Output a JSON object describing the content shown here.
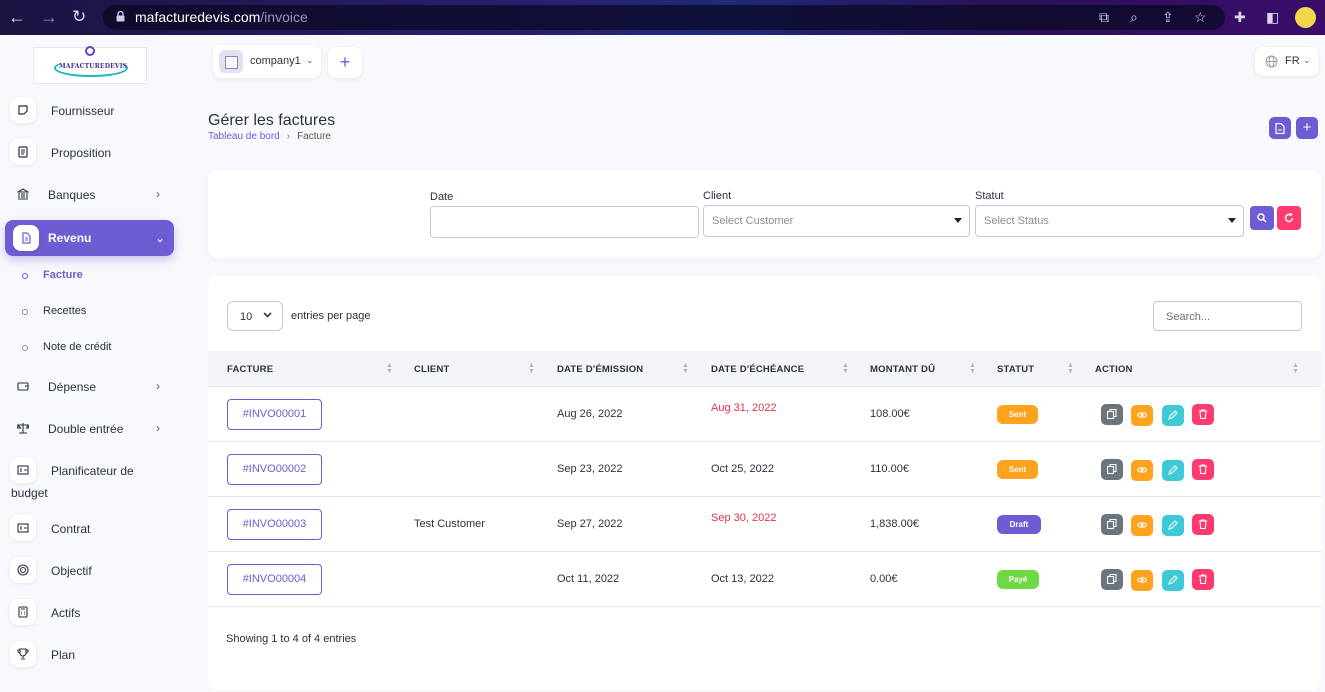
{
  "browser": {
    "url_host": "mafacturedevis.com",
    "url_path": "/invoice"
  },
  "logo": {
    "text": "MAFACTUREDEVIS"
  },
  "sidebar": {
    "items": [
      {
        "label": "Fournisseur",
        "icon": "note-icon"
      },
      {
        "label": "Proposition",
        "icon": "document-icon"
      },
      {
        "label": "Banques",
        "icon": "bank-icon",
        "chevron": "›"
      },
      {
        "label": "Revenu",
        "icon": "file-icon",
        "chevron": "⌄",
        "active": true
      },
      {
        "label": "Dépense",
        "icon": "wallet-icon",
        "chevron": "›"
      },
      {
        "label": "Double entrée",
        "icon": "scale-icon",
        "chevron": "›"
      },
      {
        "label": "Planificateur de",
        "label2": "budget",
        "icon": "budget-icon"
      },
      {
        "label": "Contrat",
        "icon": "contract-icon"
      },
      {
        "label": "Objectif",
        "icon": "target-icon"
      },
      {
        "label": "Actifs",
        "icon": "calculator-icon"
      },
      {
        "label": "Plan",
        "icon": "trophy-icon"
      }
    ],
    "sub_items": [
      {
        "label": "Facture",
        "active": true
      },
      {
        "label": "Recettes"
      },
      {
        "label": "Note de crédit"
      }
    ]
  },
  "topbar": {
    "company": "company1",
    "add_symbol": "+",
    "language": "FR"
  },
  "page": {
    "title": "Gérer les factures",
    "breadcrumb": {
      "home": "Tableau de bord",
      "separator": "›",
      "current": "Facture"
    },
    "add_symbol": "+"
  },
  "filters": {
    "date_label": "Date",
    "client_label": "Client",
    "client_placeholder": "Select Customer",
    "status_label": "Statut",
    "status_placeholder": "Select Status"
  },
  "table": {
    "entries_value": "10",
    "entries_label": "entries per page",
    "search_placeholder": "Search...",
    "columns": [
      "FACTURE",
      "CLIENT",
      "DATE D'ÉMISSION",
      "DATE D'ÉCHÉANCE",
      "MONTANT DÛ",
      "STATUT",
      "ACTION"
    ],
    "rows": [
      {
        "invoice": "#INVO00001",
        "client": "",
        "issue_date": "Aug 26, 2022",
        "due_date": "Aug 31, 2022",
        "overdue": true,
        "amount": "108.00€",
        "status": "Sent",
        "status_color": "#ffa21d"
      },
      {
        "invoice": "#INVO00002",
        "client": "",
        "issue_date": "Sep 23, 2022",
        "due_date": "Oct 25, 2022",
        "overdue": false,
        "amount": "110.00€",
        "status": "Sent",
        "status_color": "#ffa21d"
      },
      {
        "invoice": "#INVO00003",
        "client": "Test Customer",
        "issue_date": "Sep 27, 2022",
        "due_date": "Sep 30, 2022",
        "overdue": true,
        "amount": "1,838.00€",
        "status": "Draft",
        "status_color": "#6c5dd3"
      },
      {
        "invoice": "#INVO00004",
        "client": "",
        "issue_date": "Oct 11, 2022",
        "due_date": "Oct 13, 2022",
        "overdue": false,
        "amount": "0.00€",
        "status": "Payé",
        "status_color": "#6fd943"
      }
    ],
    "footer": "Showing 1 to 4 of 4 entries"
  },
  "colors": {
    "primary": "#6c5dd3",
    "danger": "#ff3a6e",
    "warning": "#ffa21d",
    "info": "#3ec9d6",
    "secondary": "#6c757d",
    "success": "#6fd943"
  }
}
